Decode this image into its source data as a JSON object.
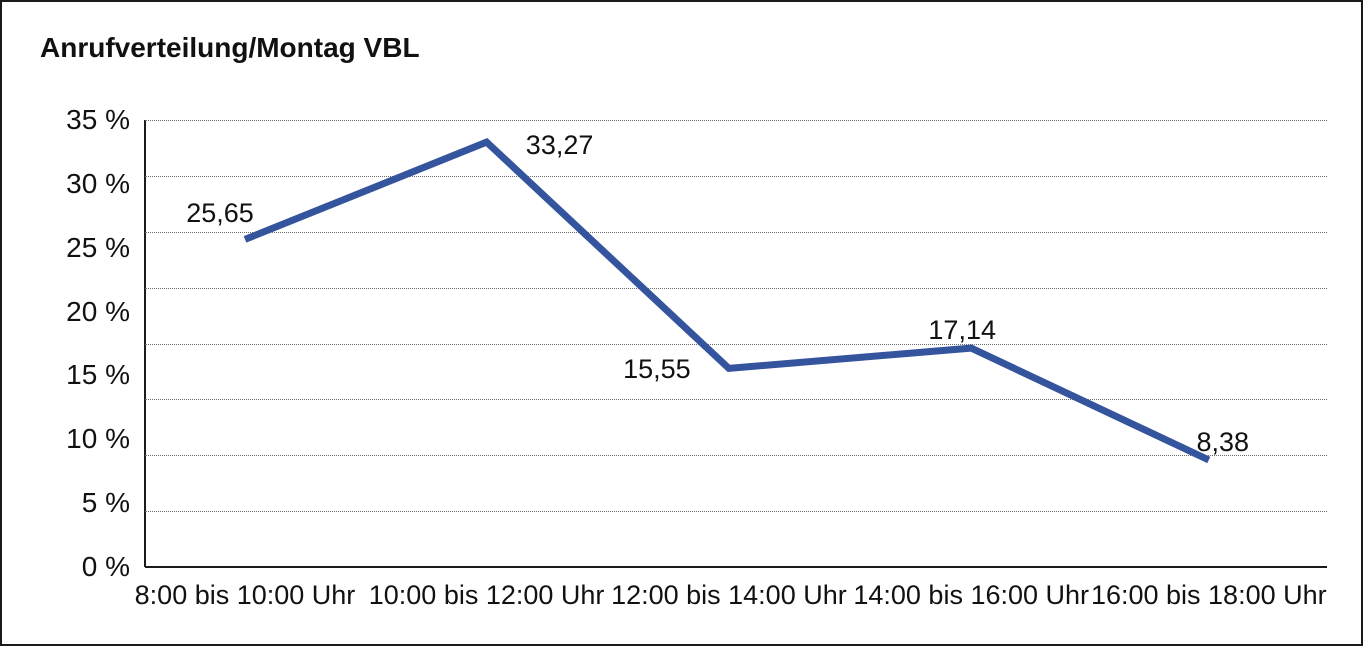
{
  "window": {
    "background_color": "#ffffff",
    "border_color": "#1a1a1a"
  },
  "chart_data": {
    "type": "line",
    "title": "Anrufverteilung/Montag VBL",
    "categories": [
      "8:00 bis 10:00 Uhr",
      "10:00 bis 12:00 Uhr",
      "12:00 bis 14:00 Uhr",
      "14:00 bis 16:00 Uhr",
      "16:00 bis 18:00 Uhr"
    ],
    "values": [
      25.65,
      33.27,
      15.55,
      17.14,
      8.38
    ],
    "point_labels": [
      "25,65",
      "33,27",
      "15,55",
      "17,14",
      "8,38"
    ],
    "yticks": [
      {
        "value": 35,
        "label": "35 %"
      },
      {
        "value": 30,
        "label": "30 %"
      },
      {
        "value": 25,
        "label": "25 %"
      },
      {
        "value": 20,
        "label": "20 %"
      },
      {
        "value": 15,
        "label": "15 %"
      },
      {
        "value": 10,
        "label": "10 %"
      },
      {
        "value": 5,
        "label": "5 %"
      },
      {
        "value": 0,
        "label": "0 %"
      }
    ],
    "ylim": [
      0,
      35
    ],
    "xlabel": "",
    "ylabel": "",
    "legend": "none",
    "grid": "horizontal-dotted",
    "line_color": "#35549E",
    "text_color": "#111111"
  }
}
